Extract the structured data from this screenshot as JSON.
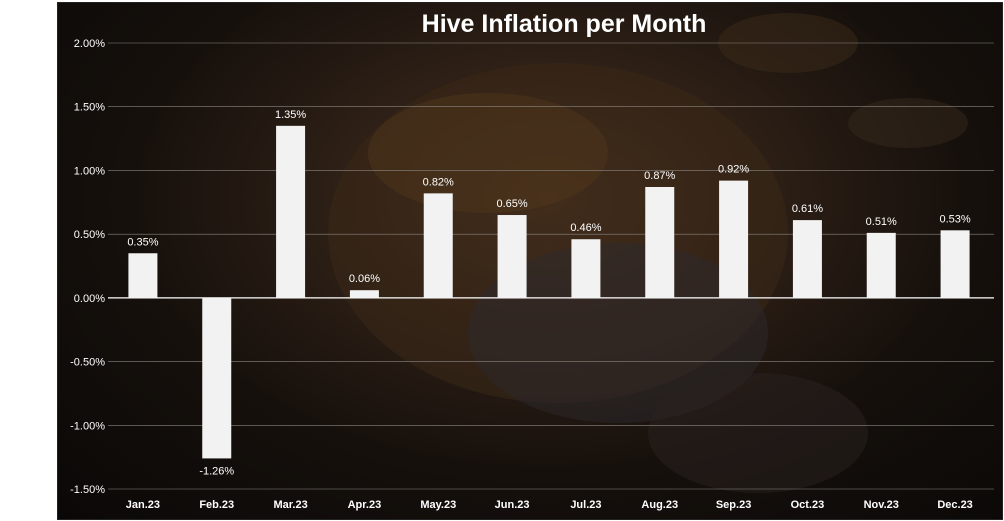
{
  "chart_data": {
    "type": "bar",
    "title": "Hive Inflation per Month",
    "categories": [
      "Jan.23",
      "Feb.23",
      "Mar.23",
      "Apr.23",
      "May.23",
      "Jun.23",
      "Jul.23",
      "Aug.23",
      "Sep.23",
      "Oct.23",
      "Nov.23",
      "Dec.23"
    ],
    "values": [
      0.35,
      -1.26,
      1.35,
      0.06,
      0.82,
      0.65,
      0.46,
      0.87,
      0.92,
      0.61,
      0.51,
      0.53
    ],
    "data_labels": [
      "0.35%",
      "-1.26%",
      "1.35%",
      "0.06%",
      "0.82%",
      "0.65%",
      "0.46%",
      "0.87%",
      "0.92%",
      "0.61%",
      "0.51%",
      "0.53%"
    ],
    "y_ticks": [
      2.0,
      1.5,
      1.0,
      0.5,
      0.0,
      -0.5,
      -1.0,
      -1.5
    ],
    "y_tick_labels": [
      "2.00%",
      "1.50%",
      "1.00%",
      "0.50%",
      "0.00%",
      "-0.50%",
      "-1.00%",
      "-1.50%"
    ],
    "ylim": [
      -1.5,
      2.0
    ],
    "grid": true,
    "legend": "none",
    "colors": {
      "bar": "#f2f2f2",
      "gridline": "#8a8580",
      "text": "#ffffff",
      "background": "#1a120d"
    }
  }
}
